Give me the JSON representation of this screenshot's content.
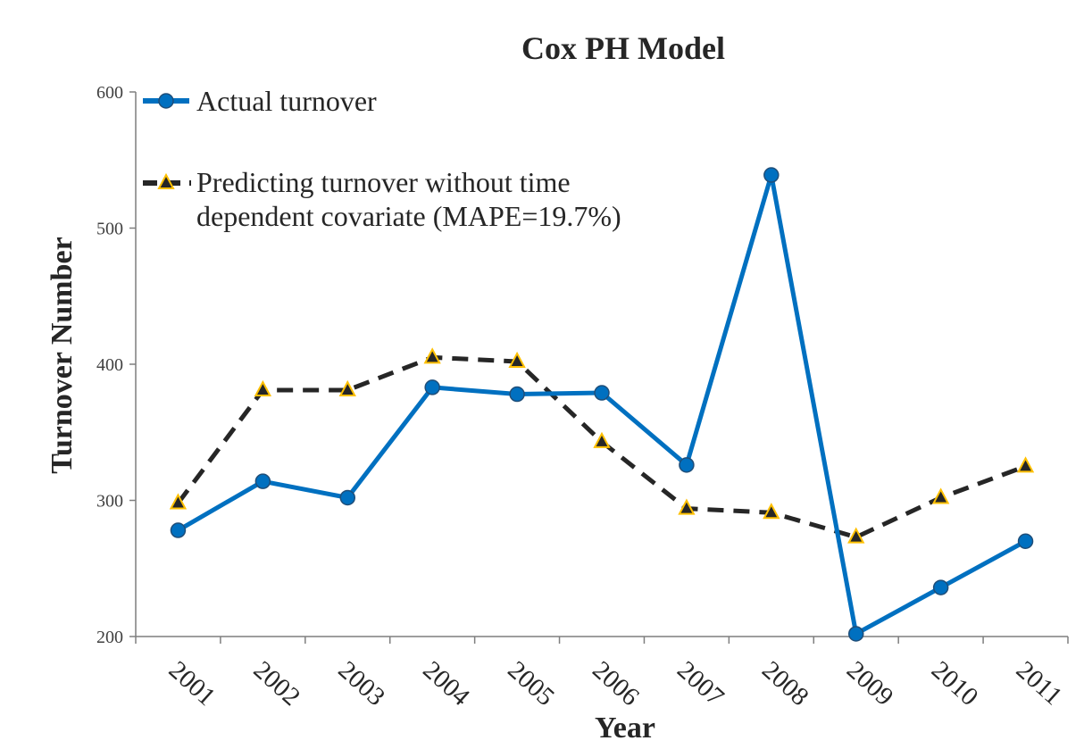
{
  "chart_data": {
    "type": "line",
    "title": "Cox PH Model",
    "xlabel": "Year",
    "ylabel": "Turnover Number",
    "categories": [
      "2001",
      "2002",
      "2003",
      "2004",
      "2005",
      "2006",
      "2007",
      "2008",
      "2009",
      "2010",
      "2011"
    ],
    "ylim": [
      200,
      600
    ],
    "yticks": [
      "200",
      "300",
      "400",
      "500",
      "600"
    ],
    "grid": false,
    "legend_position": "top-left",
    "series": [
      {
        "name": "Actual turnover",
        "values": [
          278,
          314,
          302,
          383,
          378,
          379,
          326,
          539,
          202,
          236,
          270
        ],
        "color": "#0070C0",
        "marker": "circle",
        "line_style": "solid"
      },
      {
        "name": "Predicting turnover without time dependent covariate (MAPE=19.7%)",
        "name_lines": [
          "Predicting turnover without time",
          "dependent covariate (MAPE=19.7%)"
        ],
        "values": [
          298,
          381,
          381,
          405,
          402,
          343,
          294,
          291,
          273,
          302,
          325
        ],
        "color": "#262626",
        "marker": "triangle",
        "marker_color": "#FFC000",
        "line_style": "dashed"
      }
    ]
  }
}
